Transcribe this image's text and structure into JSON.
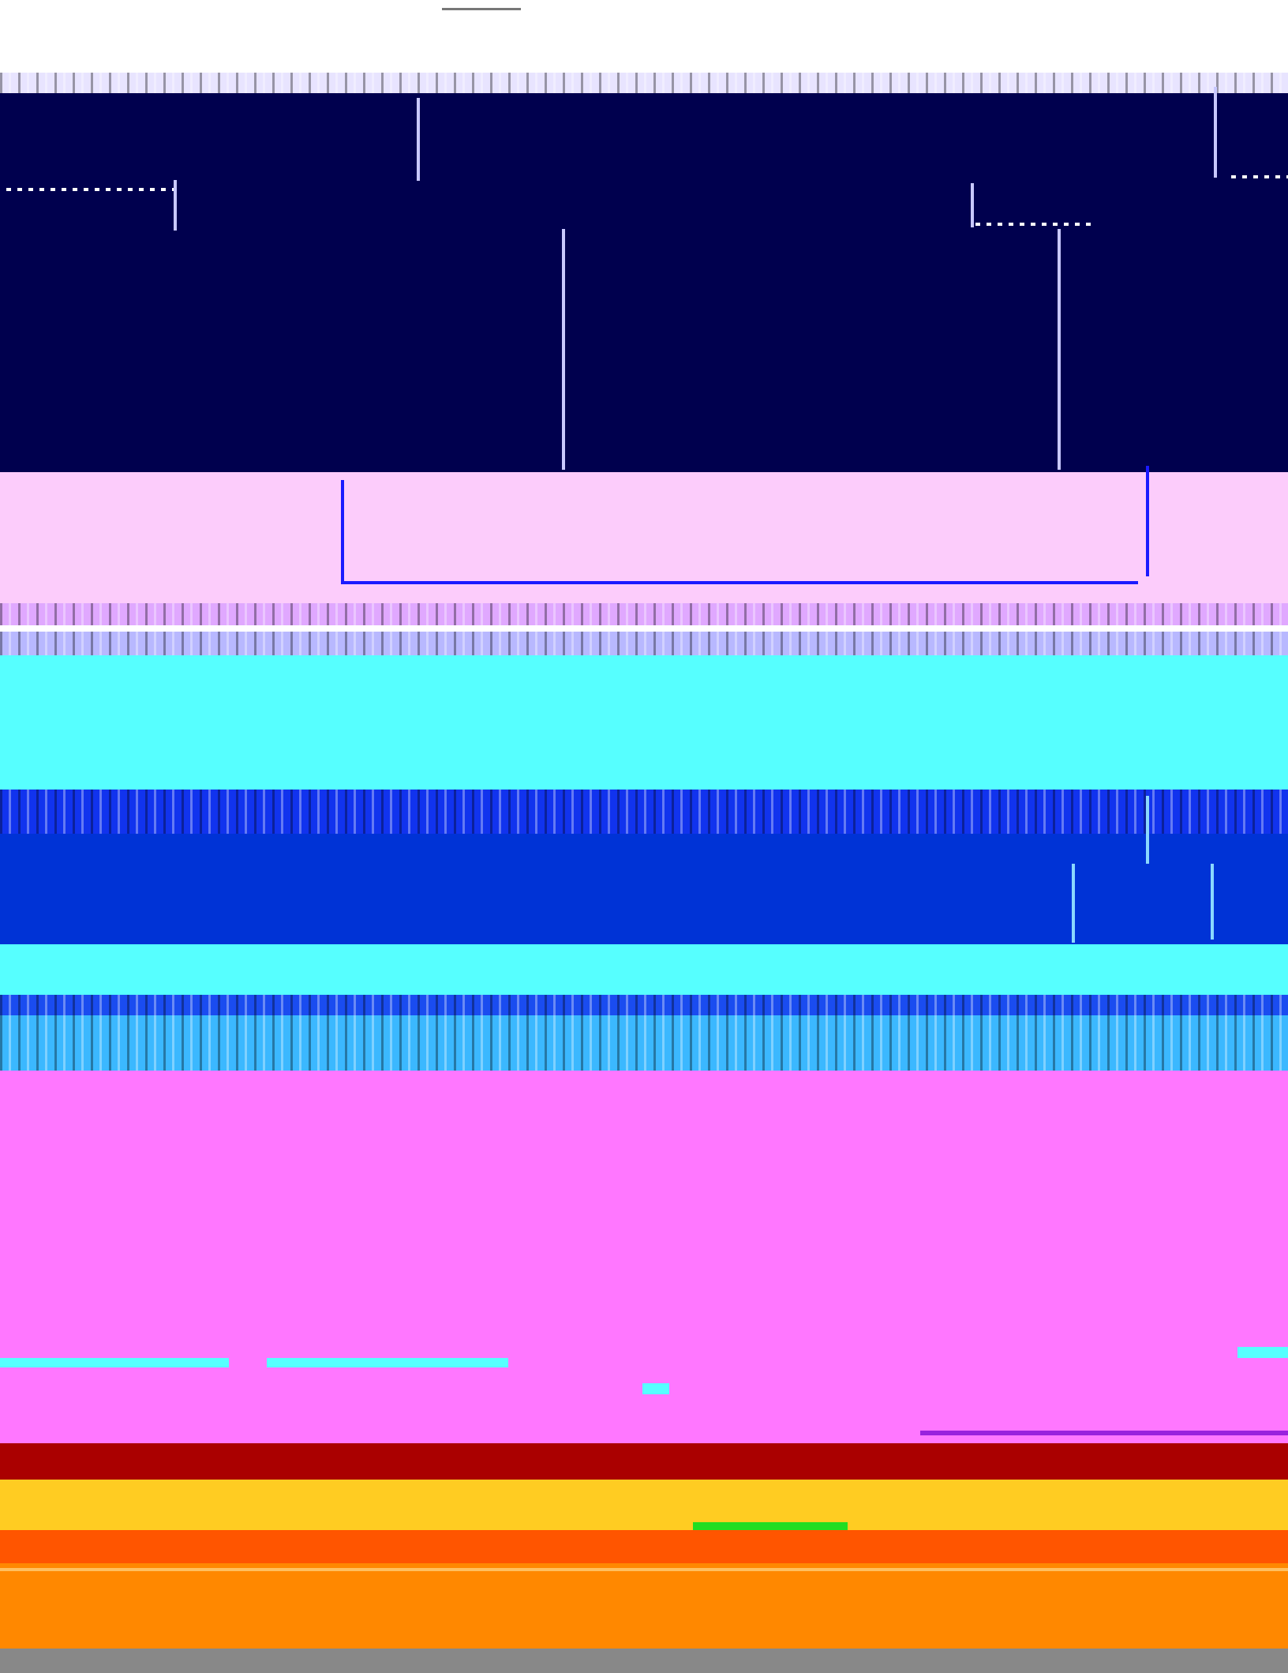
{
  "palette": {
    "white": "#ffffff",
    "navy": "#00004e",
    "pink": "#fcccfb",
    "cyan": "#56ffff",
    "blue": "#0033d6",
    "magenta": "#ff77ff",
    "dark_red": "#aa0000",
    "yellow": "#ffcc22",
    "orange_red": "#ff5500",
    "orange": "#ff8800",
    "gray": "#888888",
    "bright_blue": "#1010ff",
    "green": "#22dd22"
  }
}
